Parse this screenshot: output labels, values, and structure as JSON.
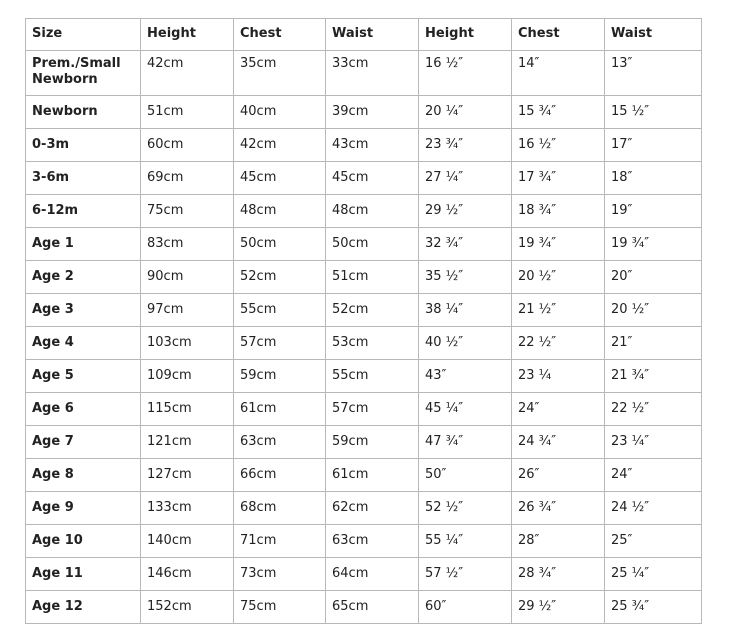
{
  "headers": [
    "Size",
    "Height",
    "Chest",
    "Waist",
    "Height",
    "Chest",
    "Waist"
  ],
  "rows": [
    [
      "Prem./Small Newborn",
      "42cm",
      "35cm",
      "33cm",
      "16 ½″",
      "14″",
      "13″"
    ],
    [
      "Newborn",
      "51cm",
      "40cm",
      "39cm",
      "20 ¼″",
      "15 ¾″",
      "15 ½″"
    ],
    [
      "0-3m",
      "60cm",
      "42cm",
      "43cm",
      "23 ¾″",
      "16 ½″",
      "17″"
    ],
    [
      "3-6m",
      "69cm",
      "45cm",
      "45cm",
      "27 ¼″",
      "17 ¾″",
      "18″"
    ],
    [
      "6-12m",
      "75cm",
      "48cm",
      "48cm",
      "29 ½″",
      "18 ¾″",
      "19″"
    ],
    [
      "Age 1",
      "83cm",
      "50cm",
      "50cm",
      "32 ¾″",
      "19 ¾″",
      "19 ¾″"
    ],
    [
      "Age 2",
      "90cm",
      "52cm",
      "51cm",
      "35 ½″",
      "20 ½″",
      "20″"
    ],
    [
      "Age 3",
      "97cm",
      "55cm",
      "52cm",
      "38 ¼″",
      "21 ½″",
      "20 ½″"
    ],
    [
      "Age 4",
      "103cm",
      "57cm",
      "53cm",
      "40 ½″",
      "22 ½″",
      "21″"
    ],
    [
      "Age 5",
      "109cm",
      "59cm",
      "55cm",
      "43″",
      "23 ¼",
      "21 ¾″"
    ],
    [
      "Age 6",
      "115cm",
      "61cm",
      "57cm",
      "45 ¼″",
      "24″",
      "22 ½″"
    ],
    [
      "Age 7",
      "121cm",
      "63cm",
      "59cm",
      "47 ¾″",
      "24 ¾″",
      "23 ¼″"
    ],
    [
      "Age 8",
      "127cm",
      "66cm",
      "61cm",
      "50″",
      "26″",
      "24″"
    ],
    [
      "Age 9",
      "133cm",
      "68cm",
      "62cm",
      "52 ½″",
      "26 ¾″",
      "24 ½″"
    ],
    [
      "Age 10",
      "140cm",
      "71cm",
      "63cm",
      "55 ¼″",
      "28″",
      "25″"
    ],
    [
      "Age 11",
      "146cm",
      "73cm",
      "64cm",
      "57 ½″",
      "28 ¾″",
      "25 ¼″"
    ],
    [
      "Age 12",
      "152cm",
      "75cm",
      "65cm",
      "60″",
      "29 ½″",
      "25 ¾″"
    ]
  ]
}
